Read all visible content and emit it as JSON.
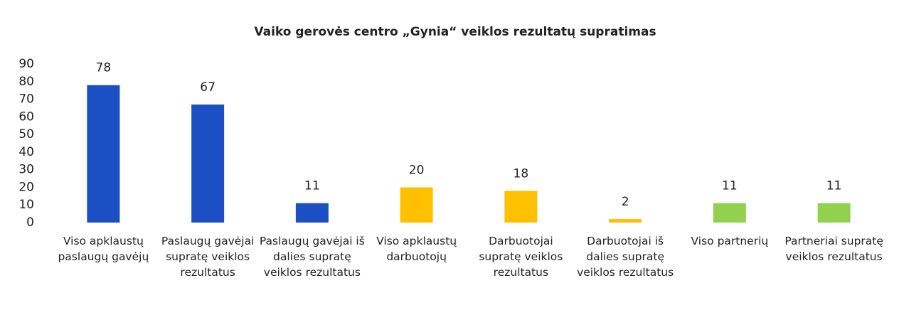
{
  "chart_data": {
    "type": "bar",
    "title": "Vaiko gerovės centro „Gynia“  veiklos rezultatų supratimas",
    "categories": [
      "Viso apklaustų paslaugų gavėjų",
      "Paslaugų gavėjai supratę veiklos rezultatus",
      "Paslaugų gavėjai iš dalies supratę veiklos rezultatus",
      "Viso apklaustų darbuotojų",
      "Darbuotojai supratę veiklos rezultatus",
      "Darbuotojai iš dalies supratę veiklos rezultatus",
      "Viso partnerių",
      "Partneriai supratę veiklos rezultatus"
    ],
    "values": [
      78,
      67,
      11,
      20,
      18,
      2,
      11,
      11
    ],
    "colors": [
      "#1d4fc4",
      "#1d4fc4",
      "#1d4fc4",
      "#ffc000",
      "#ffc000",
      "#ffc000",
      "#92d050",
      "#92d050"
    ],
    "ylim": [
      0,
      90
    ],
    "yticks": [
      0,
      10,
      20,
      30,
      40,
      50,
      60,
      70,
      80,
      90
    ],
    "grid": false
  }
}
